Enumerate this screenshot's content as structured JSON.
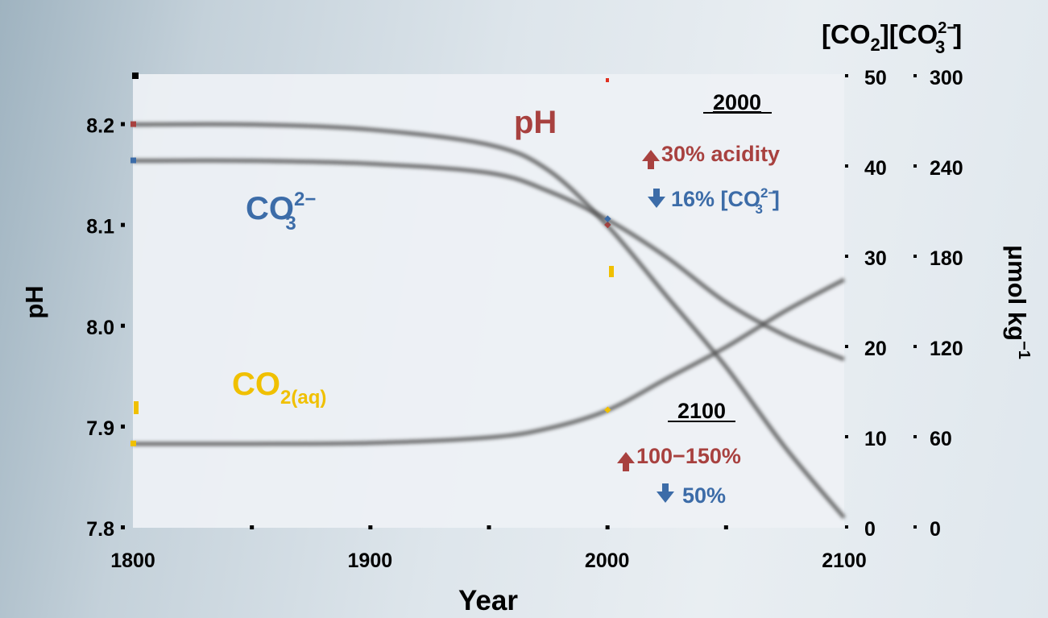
{
  "chart_data": {
    "type": "line",
    "x": [
      1800,
      1850,
      1900,
      1950,
      1975,
      2000,
      2025,
      2050,
      2075,
      2100
    ],
    "xlim": [
      1800,
      2100
    ],
    "x_ticks": [
      "1800",
      "1900",
      "2000",
      "2100"
    ],
    "xlabel": "Year",
    "ylabel_left": "pH",
    "ylim_left": [
      7.8,
      8.25
    ],
    "y_ticks_left": [
      "7.8",
      "7.9",
      "8.0",
      "8.1",
      "8.2"
    ],
    "y_ticks_right_1": [
      "0",
      "10",
      "20",
      "30",
      "40",
      "50"
    ],
    "y_ticks_right_2": [
      "0",
      "60",
      "120",
      "180",
      "240",
      "300"
    ],
    "ylim_right_1": [
      0,
      50
    ],
    "ylim_right_2": [
      0,
      300
    ],
    "ylabel_right": "μmol kg",
    "ylabel_right_sup": "−1",
    "right_header": {
      "base1": "[CO",
      "sub1": "2",
      "mid": "][CO",
      "sup": "2−",
      "sub2": "3",
      "end": "]"
    },
    "series": [
      {
        "axis": "left",
        "color": "#a8413f",
        "values": [
          8.2,
          8.2,
          8.195,
          8.18,
          8.155,
          8.1,
          8.03,
          7.96,
          7.88,
          7.81
        ]
      },
      {
        "axis": "right2",
        "color": "#3c6ca8",
        "values": [
          244,
          244,
          242,
          236,
          224,
          205,
          180,
          150,
          128,
          112
        ]
      },
      {
        "axis": "right1",
        "color": "#f0c000",
        "values": [
          9.3,
          9.3,
          9.4,
          10,
          11,
          13,
          16.5,
          20,
          24,
          27.5
        ]
      }
    ],
    "series_labels": {
      "ph": "pH",
      "co3_base": "CO",
      "co3_sup": "2−",
      "co3_sub": "3",
      "co2_base": "CO",
      "co2_sub": "2(aq)"
    },
    "annotations": {
      "year_2000": "2000",
      "acidity_2000": "30% acidity",
      "co3_2000_prefix": "16% [CO",
      "co3_2000_sup": "2−",
      "co3_2000_sub": "3",
      "co3_2000_suffix": "]",
      "year_2100": "2100",
      "acidity_2100": "100−150%",
      "co3_2100": "50%"
    },
    "colors": {
      "ph": "#a8413f",
      "co3": "#3c6ca8",
      "co2": "#f0c000"
    }
  }
}
